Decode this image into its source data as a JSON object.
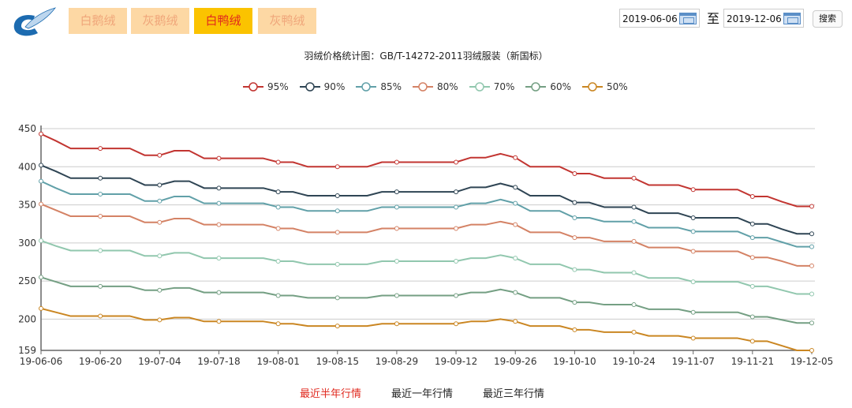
{
  "header": {
    "tabs": [
      {
        "label": "白鹅绒",
        "active": false
      },
      {
        "label": "灰鹅绒",
        "active": false
      },
      {
        "label": "白鸭绒",
        "active": true
      },
      {
        "label": "灰鸭绒",
        "active": false
      }
    ],
    "start_date": "2019-06-06",
    "to_label": "至",
    "end_date": "2019-12-06",
    "search_label": "搜索"
  },
  "colors": {
    "tab_active_bg": "#fbc300",
    "tab_active_text": "#e0281e",
    "tab_bg": "#fdd8a4",
    "tab_text": "#f0a67a",
    "link_active": "#e0281e"
  },
  "chart_data": {
    "type": "line",
    "title": "羽绒价格统计图：GB/T-14272-2011羽绒服装（新国标）",
    "legend_position": "top",
    "grid": true,
    "xlabel": "",
    "ylabel": "",
    "x_tick_labels": [
      "19-06-06",
      "19-06-20",
      "19-07-04",
      "19-07-18",
      "19-08-01",
      "19-08-15",
      "19-08-29",
      "19-09-12",
      "19-09-26",
      "19-10-10",
      "19-10-24",
      "19-11-07",
      "19-11-21",
      "19-12-05"
    ],
    "y_ticks": [
      159,
      200,
      250,
      300,
      350,
      400,
      450
    ],
    "ylim": [
      159,
      450
    ],
    "series": [
      {
        "name": "95%",
        "color": "#c23531",
        "values": [
          443,
          434,
          424,
          424,
          424,
          424,
          424,
          415,
          415,
          421,
          421,
          411,
          411,
          411,
          411,
          411,
          406,
          406,
          400,
          400,
          400,
          400,
          400,
          406,
          406,
          406,
          406,
          406,
          406,
          412,
          412,
          417,
          412,
          400,
          400,
          400,
          391,
          391,
          385,
          385,
          385,
          376,
          376,
          376,
          370,
          370,
          370,
          370,
          361,
          361,
          354,
          348,
          348
        ]
      },
      {
        "name": "90%",
        "color": "#2f4554",
        "values": [
          402,
          394,
          385,
          385,
          385,
          385,
          385,
          376,
          376,
          381,
          381,
          372,
          372,
          372,
          372,
          372,
          367,
          367,
          362,
          362,
          362,
          362,
          362,
          367,
          367,
          367,
          367,
          367,
          367,
          373,
          373,
          378,
          373,
          362,
          362,
          362,
          353,
          353,
          347,
          347,
          347,
          339,
          339,
          339,
          333,
          333,
          333,
          333,
          325,
          325,
          318,
          312,
          312
        ]
      },
      {
        "name": "85%",
        "color": "#61a0a8",
        "values": [
          381,
          372,
          364,
          364,
          364,
          364,
          364,
          355,
          355,
          361,
          361,
          352,
          352,
          352,
          352,
          352,
          347,
          347,
          342,
          342,
          342,
          342,
          342,
          347,
          347,
          347,
          347,
          347,
          347,
          352,
          352,
          357,
          352,
          342,
          342,
          342,
          333,
          333,
          328,
          328,
          328,
          320,
          320,
          320,
          315,
          315,
          315,
          315,
          307,
          307,
          301,
          295,
          295
        ]
      },
      {
        "name": "80%",
        "color": "#d48265",
        "values": [
          351,
          343,
          335,
          335,
          335,
          335,
          335,
          327,
          327,
          332,
          332,
          324,
          324,
          324,
          324,
          324,
          319,
          319,
          314,
          314,
          314,
          314,
          314,
          319,
          319,
          319,
          319,
          319,
          319,
          324,
          324,
          328,
          324,
          314,
          314,
          314,
          307,
          307,
          302,
          302,
          302,
          294,
          294,
          294,
          289,
          289,
          289,
          289,
          281,
          281,
          276,
          270,
          270
        ]
      },
      {
        "name": "70%",
        "color": "#91c7ae",
        "values": [
          303,
          296,
          290,
          290,
          290,
          290,
          290,
          283,
          283,
          287,
          287,
          280,
          280,
          280,
          280,
          280,
          276,
          276,
          272,
          272,
          272,
          272,
          272,
          276,
          276,
          276,
          276,
          276,
          276,
          280,
          280,
          284,
          280,
          272,
          272,
          272,
          265,
          265,
          261,
          261,
          261,
          254,
          254,
          254,
          249,
          249,
          249,
          249,
          243,
          243,
          238,
          233,
          233
        ]
      },
      {
        "name": "60%",
        "color": "#749f83",
        "values": [
          255,
          249,
          243,
          243,
          243,
          243,
          243,
          238,
          238,
          241,
          241,
          235,
          235,
          235,
          235,
          235,
          231,
          231,
          228,
          228,
          228,
          228,
          228,
          231,
          231,
          231,
          231,
          231,
          231,
          235,
          235,
          239,
          235,
          228,
          228,
          228,
          222,
          222,
          219,
          219,
          219,
          213,
          213,
          213,
          209,
          209,
          209,
          209,
          203,
          203,
          199,
          195,
          195
        ]
      },
      {
        "name": "50%",
        "color": "#ca8622",
        "values": [
          214,
          209,
          204,
          204,
          204,
          204,
          204,
          199,
          199,
          202,
          202,
          197,
          197,
          197,
          197,
          197,
          194,
          194,
          191,
          191,
          191,
          191,
          191,
          194,
          194,
          194,
          194,
          194,
          194,
          197,
          197,
          200,
          197,
          191,
          191,
          191,
          186,
          186,
          183,
          183,
          183,
          178,
          178,
          178,
          175,
          175,
          175,
          175,
          171,
          171,
          165,
          159,
          159
        ]
      }
    ]
  },
  "footer": {
    "links": [
      {
        "label": "最近半年行情",
        "active": true
      },
      {
        "label": "最近一年行情",
        "active": false
      },
      {
        "label": "最近三年行情",
        "active": false
      }
    ]
  }
}
